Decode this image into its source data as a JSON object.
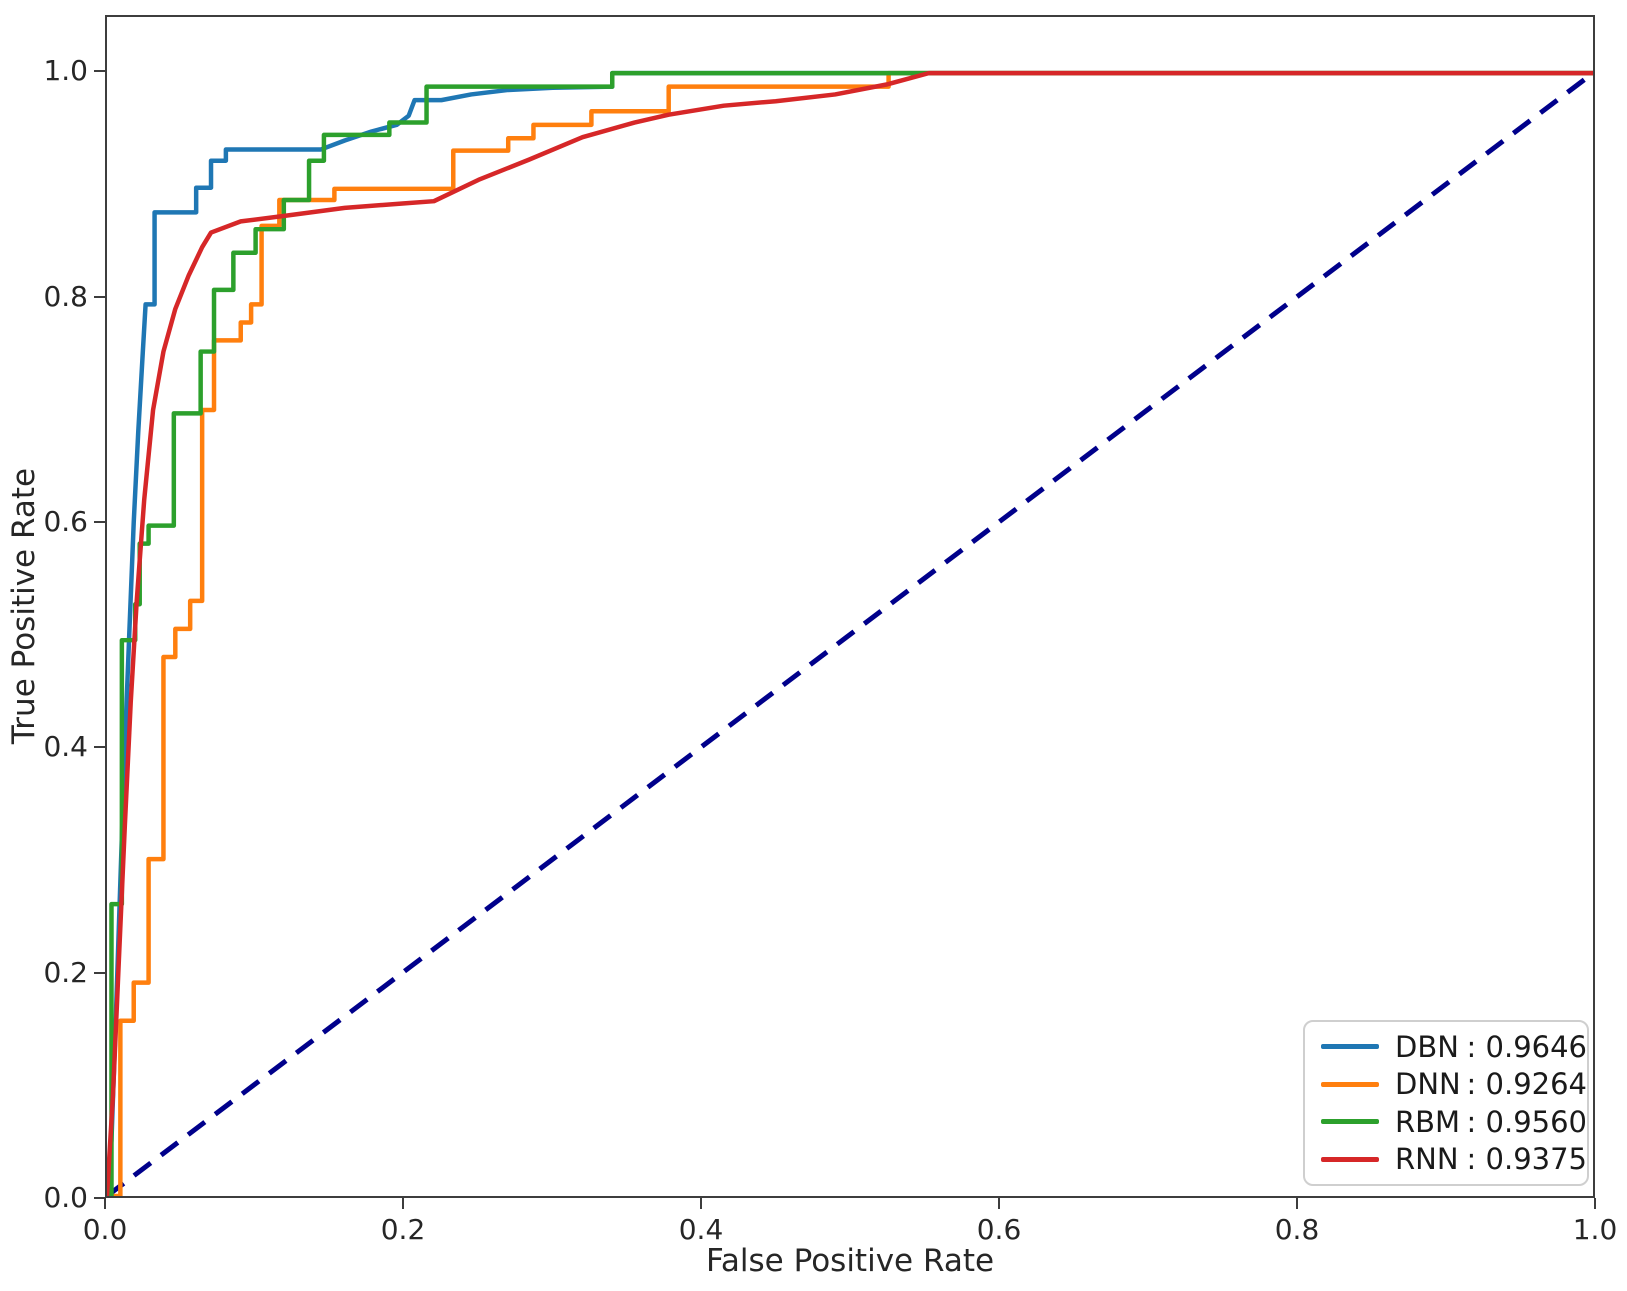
{
  "figure": {
    "background": "#ffffff"
  },
  "chart_data": {
    "type": "line",
    "title": "",
    "xlabel": "False Positive Rate",
    "ylabel": "True Positive Rate",
    "xlim": [
      0.0,
      1.0
    ],
    "ylim": [
      0.0,
      1.05
    ],
    "grid": false,
    "legend": {
      "position": "lower right",
      "separator": ":"
    },
    "x_ticks": [
      {
        "value": 0.0,
        "label": "0.0"
      },
      {
        "value": 0.2,
        "label": "0.2"
      },
      {
        "value": 0.4,
        "label": "0.4"
      },
      {
        "value": 0.6,
        "label": "0.6"
      },
      {
        "value": 0.8,
        "label": "0.8"
      },
      {
        "value": 1.0,
        "label": "1.0"
      }
    ],
    "y_ticks": [
      {
        "value": 0.0,
        "label": "0.0"
      },
      {
        "value": 0.2,
        "label": "0.2"
      },
      {
        "value": 0.4,
        "label": "0.4"
      },
      {
        "value": 0.6,
        "label": "0.6"
      },
      {
        "value": 0.8,
        "label": "0.8"
      },
      {
        "value": 1.0,
        "label": "1.0"
      }
    ],
    "series": [
      {
        "name": "DBN",
        "auc": "0.9646",
        "color": "#1f77b4",
        "points": [
          [
            0,
            0
          ],
          [
            0.003,
            0.05
          ],
          [
            0.006,
            0.16
          ],
          [
            0.009,
            0.28
          ],
          [
            0.012,
            0.4
          ],
          [
            0.015,
            0.5
          ],
          [
            0.018,
            0.6
          ],
          [
            0.021,
            0.68
          ],
          [
            0.024,
            0.75
          ],
          [
            0.026,
            0.794
          ],
          [
            0.032,
            0.794
          ],
          [
            0.032,
            0.876
          ],
          [
            0.06,
            0.876
          ],
          [
            0.06,
            0.898
          ],
          [
            0.07,
            0.898
          ],
          [
            0.07,
            0.922
          ],
          [
            0.08,
            0.922
          ],
          [
            0.08,
            0.932
          ],
          [
            0.144,
            0.932
          ],
          [
            0.16,
            0.94
          ],
          [
            0.178,
            0.948
          ],
          [
            0.195,
            0.954
          ],
          [
            0.203,
            0.962
          ],
          [
            0.207,
            0.976
          ],
          [
            0.225,
            0.976
          ],
          [
            0.245,
            0.981
          ],
          [
            0.27,
            0.985
          ],
          [
            0.3,
            0.987
          ],
          [
            0.34,
            0.988
          ],
          [
            0.34,
            1.0
          ],
          [
            1.0,
            1.0
          ]
        ]
      },
      {
        "name": "DNN",
        "auc": "0.9264",
        "color": "#ff7f0e",
        "points": [
          [
            0,
            0
          ],
          [
            0.009,
            0
          ],
          [
            0.009,
            0.156
          ],
          [
            0.018,
            0.156
          ],
          [
            0.018,
            0.19
          ],
          [
            0.028,
            0.19
          ],
          [
            0.028,
            0.3
          ],
          [
            0.038,
            0.3
          ],
          [
            0.038,
            0.48
          ],
          [
            0.046,
            0.48
          ],
          [
            0.046,
            0.505
          ],
          [
            0.056,
            0.505
          ],
          [
            0.056,
            0.53
          ],
          [
            0.064,
            0.53
          ],
          [
            0.064,
            0.7
          ],
          [
            0.072,
            0.7
          ],
          [
            0.072,
            0.762
          ],
          [
            0.09,
            0.762
          ],
          [
            0.09,
            0.778
          ],
          [
            0.097,
            0.778
          ],
          [
            0.097,
            0.794
          ],
          [
            0.104,
            0.794
          ],
          [
            0.104,
            0.864
          ],
          [
            0.116,
            0.864
          ],
          [
            0.116,
            0.887
          ],
          [
            0.153,
            0.887
          ],
          [
            0.153,
            0.897
          ],
          [
            0.233,
            0.897
          ],
          [
            0.233,
            0.931
          ],
          [
            0.27,
            0.931
          ],
          [
            0.27,
            0.942
          ],
          [
            0.287,
            0.942
          ],
          [
            0.287,
            0.954
          ],
          [
            0.326,
            0.954
          ],
          [
            0.326,
            0.966
          ],
          [
            0.378,
            0.966
          ],
          [
            0.378,
            0.988
          ],
          [
            0.526,
            0.988
          ],
          [
            0.526,
            1.0
          ],
          [
            1.0,
            1.0
          ]
        ]
      },
      {
        "name": "RBM",
        "auc": "0.9560",
        "color": "#2ca02c",
        "points": [
          [
            0,
            0
          ],
          [
            0.003,
            0
          ],
          [
            0.003,
            0.26
          ],
          [
            0.01,
            0.26
          ],
          [
            0.01,
            0.495
          ],
          [
            0.019,
            0.495
          ],
          [
            0.019,
            0.527
          ],
          [
            0.022,
            0.527
          ],
          [
            0.022,
            0.581
          ],
          [
            0.028,
            0.581
          ],
          [
            0.028,
            0.597
          ],
          [
            0.045,
            0.597
          ],
          [
            0.045,
            0.697
          ],
          [
            0.063,
            0.697
          ],
          [
            0.063,
            0.752
          ],
          [
            0.072,
            0.752
          ],
          [
            0.072,
            0.807
          ],
          [
            0.085,
            0.807
          ],
          [
            0.085,
            0.84
          ],
          [
            0.1,
            0.84
          ],
          [
            0.1,
            0.861
          ],
          [
            0.119,
            0.861
          ],
          [
            0.119,
            0.887
          ],
          [
            0.136,
            0.887
          ],
          [
            0.136,
            0.922
          ],
          [
            0.146,
            0.922
          ],
          [
            0.146,
            0.945
          ],
          [
            0.19,
            0.945
          ],
          [
            0.19,
            0.956
          ],
          [
            0.215,
            0.956
          ],
          [
            0.215,
            0.988
          ],
          [
            0.34,
            0.988
          ],
          [
            0.34,
            1.0
          ],
          [
            1.0,
            1.0
          ]
        ]
      },
      {
        "name": "RNN",
        "auc": "0.9375",
        "color": "#d62728",
        "points": [
          [
            0,
            0
          ],
          [
            0.004,
            0.09
          ],
          [
            0.008,
            0.21
          ],
          [
            0.012,
            0.33
          ],
          [
            0.016,
            0.44
          ],
          [
            0.02,
            0.53
          ],
          [
            0.025,
            0.62
          ],
          [
            0.031,
            0.7
          ],
          [
            0.038,
            0.752
          ],
          [
            0.046,
            0.79
          ],
          [
            0.055,
            0.82
          ],
          [
            0.064,
            0.845
          ],
          [
            0.07,
            0.858
          ],
          [
            0.09,
            0.868
          ],
          [
            0.12,
            0.873
          ],
          [
            0.16,
            0.88
          ],
          [
            0.2,
            0.884
          ],
          [
            0.22,
            0.886
          ],
          [
            0.25,
            0.905
          ],
          [
            0.284,
            0.923
          ],
          [
            0.32,
            0.943
          ],
          [
            0.355,
            0.956
          ],
          [
            0.378,
            0.963
          ],
          [
            0.415,
            0.971
          ],
          [
            0.45,
            0.975
          ],
          [
            0.49,
            0.981
          ],
          [
            0.525,
            0.99
          ],
          [
            0.553,
            1.0
          ],
          [
            1.0,
            1.0
          ]
        ]
      }
    ],
    "reference_line": {
      "name": "chance-diagonal",
      "color": "#00008b",
      "style": "dashed",
      "points": [
        [
          0,
          0
        ],
        [
          1,
          1
        ]
      ]
    }
  }
}
